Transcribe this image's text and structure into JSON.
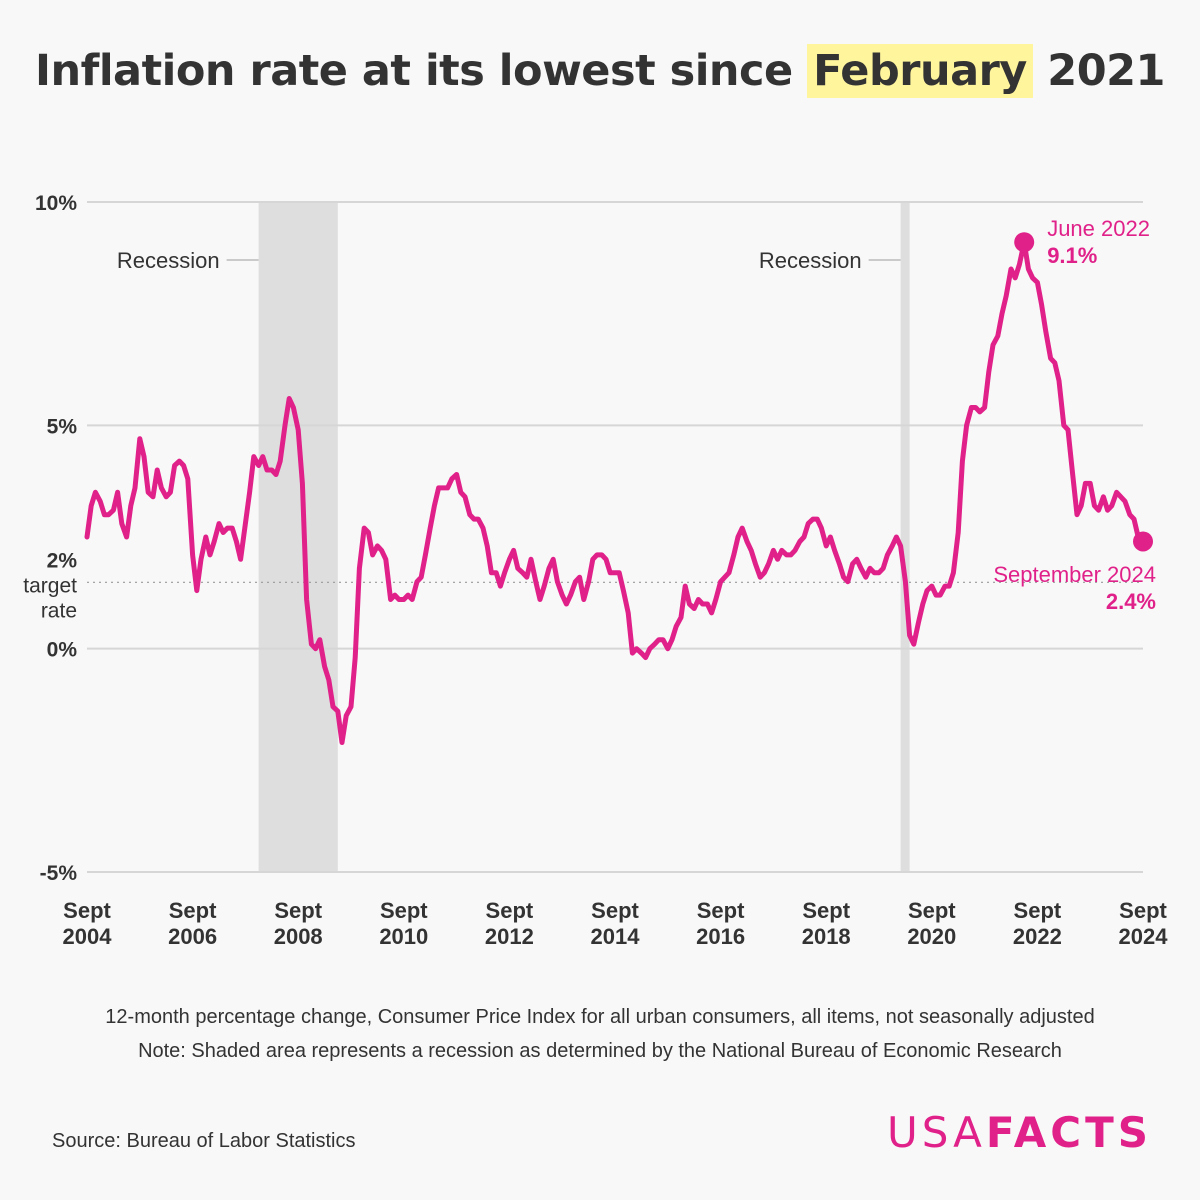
{
  "title": {
    "before": "Inflation rate at its lowest since ",
    "highlight": "February",
    "after": " 2021"
  },
  "chart_data": {
    "type": "line",
    "series_name": "12-month percentage change, CPI-U",
    "color": "#e0218a",
    "ylim": [
      -5,
      10
    ],
    "y_ticks": [
      {
        "value": 10,
        "label": "10%"
      },
      {
        "value": 5,
        "label": "5%"
      },
      {
        "value": 2,
        "label": "2%"
      },
      {
        "value": 0,
        "label": "0%"
      },
      {
        "value": -5,
        "label": "-5%"
      }
    ],
    "target": {
      "value": 2,
      "label_line1": "target",
      "label_line2": "rate"
    },
    "x_ticks": [
      {
        "year": 2004.67,
        "line1": "Sept",
        "line2": "2004"
      },
      {
        "year": 2006.67,
        "line1": "Sept",
        "line2": "2006"
      },
      {
        "year": 2008.67,
        "line1": "Sept",
        "line2": "2008"
      },
      {
        "year": 2010.67,
        "line1": "Sept",
        "line2": "2010"
      },
      {
        "year": 2012.67,
        "line1": "Sept",
        "line2": "2012"
      },
      {
        "year": 2014.67,
        "line1": "Sept",
        "line2": "2014"
      },
      {
        "year": 2016.67,
        "line1": "Sept",
        "line2": "2016"
      },
      {
        "year": 2018.67,
        "line1": "Sept",
        "line2": "2018"
      },
      {
        "year": 2020.67,
        "line1": "Sept",
        "line2": "2020"
      },
      {
        "year": 2022.67,
        "line1": "Sept",
        "line2": "2022"
      },
      {
        "year": 2024.67,
        "line1": "Sept",
        "line2": "2024"
      }
    ],
    "xlim": [
      2004.67,
      2024.67
    ],
    "recessions": [
      {
        "start": 2007.92,
        "end": 2009.42,
        "label": "Recession"
      },
      {
        "start": 2020.08,
        "end": 2020.25,
        "label": "Recession"
      }
    ],
    "annotations": [
      {
        "date": 2022.42,
        "value": 9.1,
        "label": "June 2022",
        "value_label": "9.1%"
      },
      {
        "date": 2024.67,
        "value": 2.4,
        "label": "September 2024",
        "value_label": "2.4%"
      }
    ],
    "points": [
      [
        2004.67,
        2.5
      ],
      [
        2004.75,
        3.2
      ],
      [
        2004.83,
        3.5
      ],
      [
        2004.92,
        3.3
      ],
      [
        2005.0,
        3.0
      ],
      [
        2005.08,
        3.0
      ],
      [
        2005.17,
        3.1
      ],
      [
        2005.25,
        3.5
      ],
      [
        2005.33,
        2.8
      ],
      [
        2005.42,
        2.5
      ],
      [
        2005.5,
        3.2
      ],
      [
        2005.58,
        3.6
      ],
      [
        2005.67,
        4.7
      ],
      [
        2005.75,
        4.3
      ],
      [
        2005.83,
        3.5
      ],
      [
        2005.92,
        3.4
      ],
      [
        2006.0,
        4.0
      ],
      [
        2006.08,
        3.6
      ],
      [
        2006.17,
        3.4
      ],
      [
        2006.25,
        3.5
      ],
      [
        2006.33,
        4.1
      ],
      [
        2006.42,
        4.2
      ],
      [
        2006.5,
        4.1
      ],
      [
        2006.58,
        3.8
      ],
      [
        2006.67,
        2.1
      ],
      [
        2006.75,
        1.3
      ],
      [
        2006.83,
        2.0
      ],
      [
        2006.92,
        2.5
      ],
      [
        2007.0,
        2.1
      ],
      [
        2007.08,
        2.4
      ],
      [
        2007.17,
        2.8
      ],
      [
        2007.25,
        2.6
      ],
      [
        2007.33,
        2.7
      ],
      [
        2007.42,
        2.7
      ],
      [
        2007.5,
        2.4
      ],
      [
        2007.58,
        2.0
      ],
      [
        2007.67,
        2.8
      ],
      [
        2007.75,
        3.5
      ],
      [
        2007.83,
        4.3
      ],
      [
        2007.92,
        4.1
      ],
      [
        2008.0,
        4.3
      ],
      [
        2008.08,
        4.0
      ],
      [
        2008.17,
        4.0
      ],
      [
        2008.25,
        3.9
      ],
      [
        2008.33,
        4.2
      ],
      [
        2008.42,
        5.0
      ],
      [
        2008.5,
        5.6
      ],
      [
        2008.58,
        5.4
      ],
      [
        2008.67,
        4.9
      ],
      [
        2008.75,
        3.7
      ],
      [
        2008.83,
        1.1
      ],
      [
        2008.92,
        0.1
      ],
      [
        2009.0,
        0.0
      ],
      [
        2009.08,
        0.2
      ],
      [
        2009.17,
        -0.4
      ],
      [
        2009.25,
        -0.7
      ],
      [
        2009.33,
        -1.3
      ],
      [
        2009.42,
        -1.4
      ],
      [
        2009.5,
        -2.1
      ],
      [
        2009.58,
        -1.5
      ],
      [
        2009.67,
        -1.3
      ],
      [
        2009.75,
        -0.2
      ],
      [
        2009.83,
        1.8
      ],
      [
        2009.92,
        2.7
      ],
      [
        2010.0,
        2.6
      ],
      [
        2010.08,
        2.1
      ],
      [
        2010.17,
        2.3
      ],
      [
        2010.25,
        2.2
      ],
      [
        2010.33,
        2.0
      ],
      [
        2010.42,
        1.1
      ],
      [
        2010.5,
        1.2
      ],
      [
        2010.58,
        1.1
      ],
      [
        2010.67,
        1.1
      ],
      [
        2010.75,
        1.2
      ],
      [
        2010.83,
        1.1
      ],
      [
        2010.92,
        1.5
      ],
      [
        2011.0,
        1.6
      ],
      [
        2011.08,
        2.1
      ],
      [
        2011.17,
        2.7
      ],
      [
        2011.25,
        3.2
      ],
      [
        2011.33,
        3.6
      ],
      [
        2011.42,
        3.6
      ],
      [
        2011.5,
        3.6
      ],
      [
        2011.58,
        3.8
      ],
      [
        2011.67,
        3.9
      ],
      [
        2011.75,
        3.5
      ],
      [
        2011.83,
        3.4
      ],
      [
        2011.92,
        3.0
      ],
      [
        2012.0,
        2.9
      ],
      [
        2012.08,
        2.9
      ],
      [
        2012.17,
        2.7
      ],
      [
        2012.25,
        2.3
      ],
      [
        2012.33,
        1.7
      ],
      [
        2012.42,
        1.7
      ],
      [
        2012.5,
        1.4
      ],
      [
        2012.58,
        1.7
      ],
      [
        2012.67,
        2.0
      ],
      [
        2012.75,
        2.2
      ],
      [
        2012.83,
        1.8
      ],
      [
        2012.92,
        1.7
      ],
      [
        2013.0,
        1.6
      ],
      [
        2013.08,
        2.0
      ],
      [
        2013.17,
        1.5
      ],
      [
        2013.25,
        1.1
      ],
      [
        2013.33,
        1.4
      ],
      [
        2013.42,
        1.8
      ],
      [
        2013.5,
        2.0
      ],
      [
        2013.58,
        1.5
      ],
      [
        2013.67,
        1.2
      ],
      [
        2013.75,
        1.0
      ],
      [
        2013.83,
        1.2
      ],
      [
        2013.92,
        1.5
      ],
      [
        2014.0,
        1.6
      ],
      [
        2014.08,
        1.1
      ],
      [
        2014.17,
        1.5
      ],
      [
        2014.25,
        2.0
      ],
      [
        2014.33,
        2.1
      ],
      [
        2014.42,
        2.1
      ],
      [
        2014.5,
        2.0
      ],
      [
        2014.58,
        1.7
      ],
      [
        2014.67,
        1.7
      ],
      [
        2014.75,
        1.7
      ],
      [
        2014.83,
        1.3
      ],
      [
        2014.92,
        0.8
      ],
      [
        2015.0,
        -0.1
      ],
      [
        2015.08,
        0.0
      ],
      [
        2015.17,
        -0.1
      ],
      [
        2015.25,
        -0.2
      ],
      [
        2015.33,
        0.0
      ],
      [
        2015.42,
        0.1
      ],
      [
        2015.5,
        0.2
      ],
      [
        2015.58,
        0.2
      ],
      [
        2015.67,
        0.0
      ],
      [
        2015.75,
        0.2
      ],
      [
        2015.83,
        0.5
      ],
      [
        2015.92,
        0.7
      ],
      [
        2016.0,
        1.4
      ],
      [
        2016.08,
        1.0
      ],
      [
        2016.17,
        0.9
      ],
      [
        2016.25,
        1.1
      ],
      [
        2016.33,
        1.0
      ],
      [
        2016.42,
        1.0
      ],
      [
        2016.5,
        0.8
      ],
      [
        2016.58,
        1.1
      ],
      [
        2016.67,
        1.5
      ],
      [
        2016.75,
        1.6
      ],
      [
        2016.83,
        1.7
      ],
      [
        2016.92,
        2.1
      ],
      [
        2017.0,
        2.5
      ],
      [
        2017.08,
        2.7
      ],
      [
        2017.17,
        2.4
      ],
      [
        2017.25,
        2.2
      ],
      [
        2017.33,
        1.9
      ],
      [
        2017.42,
        1.6
      ],
      [
        2017.5,
        1.7
      ],
      [
        2017.58,
        1.9
      ],
      [
        2017.67,
        2.2
      ],
      [
        2017.75,
        2.0
      ],
      [
        2017.83,
        2.2
      ],
      [
        2017.92,
        2.1
      ],
      [
        2018.0,
        2.1
      ],
      [
        2018.08,
        2.2
      ],
      [
        2018.17,
        2.4
      ],
      [
        2018.25,
        2.5
      ],
      [
        2018.33,
        2.8
      ],
      [
        2018.42,
        2.9
      ],
      [
        2018.5,
        2.9
      ],
      [
        2018.58,
        2.7
      ],
      [
        2018.67,
        2.3
      ],
      [
        2018.75,
        2.5
      ],
      [
        2018.83,
        2.2
      ],
      [
        2018.92,
        1.9
      ],
      [
        2019.0,
        1.6
      ],
      [
        2019.08,
        1.5
      ],
      [
        2019.17,
        1.9
      ],
      [
        2019.25,
        2.0
      ],
      [
        2019.33,
        1.8
      ],
      [
        2019.42,
        1.6
      ],
      [
        2019.5,
        1.8
      ],
      [
        2019.58,
        1.7
      ],
      [
        2019.67,
        1.7
      ],
      [
        2019.75,
        1.8
      ],
      [
        2019.83,
        2.1
      ],
      [
        2019.92,
        2.3
      ],
      [
        2020.0,
        2.5
      ],
      [
        2020.08,
        2.3
      ],
      [
        2020.17,
        1.5
      ],
      [
        2020.25,
        0.3
      ],
      [
        2020.33,
        0.1
      ],
      [
        2020.42,
        0.6
      ],
      [
        2020.5,
        1.0
      ],
      [
        2020.58,
        1.3
      ],
      [
        2020.67,
        1.4
      ],
      [
        2020.75,
        1.2
      ],
      [
        2020.83,
        1.2
      ],
      [
        2020.92,
        1.4
      ],
      [
        2021.0,
        1.4
      ],
      [
        2021.08,
        1.7
      ],
      [
        2021.17,
        2.6
      ],
      [
        2021.25,
        4.2
      ],
      [
        2021.33,
        5.0
      ],
      [
        2021.42,
        5.4
      ],
      [
        2021.5,
        5.4
      ],
      [
        2021.58,
        5.3
      ],
      [
        2021.67,
        5.4
      ],
      [
        2021.75,
        6.2
      ],
      [
        2021.83,
        6.8
      ],
      [
        2021.92,
        7.0
      ],
      [
        2022.0,
        7.5
      ],
      [
        2022.08,
        7.9
      ],
      [
        2022.17,
        8.5
      ],
      [
        2022.25,
        8.3
      ],
      [
        2022.33,
        8.6
      ],
      [
        2022.42,
        9.1
      ],
      [
        2022.5,
        8.5
      ],
      [
        2022.58,
        8.3
      ],
      [
        2022.67,
        8.2
      ],
      [
        2022.75,
        7.7
      ],
      [
        2022.83,
        7.1
      ],
      [
        2022.92,
        6.5
      ],
      [
        2023.0,
        6.4
      ],
      [
        2023.08,
        6.0
      ],
      [
        2023.17,
        5.0
      ],
      [
        2023.25,
        4.9
      ],
      [
        2023.33,
        4.0
      ],
      [
        2023.42,
        3.0
      ],
      [
        2023.5,
        3.2
      ],
      [
        2023.58,
        3.7
      ],
      [
        2023.67,
        3.7
      ],
      [
        2023.75,
        3.2
      ],
      [
        2023.83,
        3.1
      ],
      [
        2023.92,
        3.4
      ],
      [
        2024.0,
        3.1
      ],
      [
        2024.08,
        3.2
      ],
      [
        2024.17,
        3.5
      ],
      [
        2024.25,
        3.4
      ],
      [
        2024.33,
        3.3
      ],
      [
        2024.42,
        3.0
      ],
      [
        2024.5,
        2.9
      ],
      [
        2024.58,
        2.5
      ],
      [
        2024.67,
        2.4
      ]
    ]
  },
  "captions": {
    "line1": "12-month percentage change, Consumer Price Index for all urban consumers, all items, not seasonally adjusted",
    "line2": "Note: Shaded area represents a recession as determined by the National Bureau of Economic Research"
  },
  "source": "Source: Bureau of Labor Statistics",
  "logo": {
    "part1": "USA",
    "part2": "FACTS"
  }
}
